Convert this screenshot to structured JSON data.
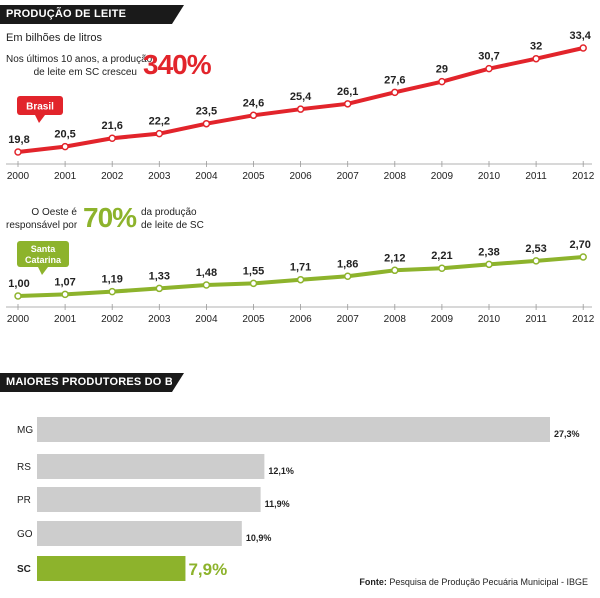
{
  "header1": {
    "title": "PRODUÇÃO DE LEITE"
  },
  "unit_text": "Em bilhões de litros",
  "growth_note": {
    "line1": "Nos últimos 10 anos, a produção",
    "line2": "de leite em SC cresceu",
    "percent": "340%"
  },
  "share_note": {
    "left1": "O Oeste é",
    "left2": "responsável por",
    "percent": "70%",
    "right1": "da produção",
    "right2": "de leite de SC"
  },
  "header2": {
    "title": "MAIORES PRODUTORES DO BRASIL"
  },
  "source": {
    "label": "Fonte:",
    "text": "Pesquisa de Produção Pecuária Municipal - IBGE"
  },
  "colors": {
    "red": "#e2242b",
    "green": "#8db32c",
    "gray": "#cdcdcd",
    "dark": "#1a1a1a"
  },
  "chart_data": [
    {
      "type": "line",
      "series_label": "Brasil",
      "x": [
        "2000",
        "2001",
        "2002",
        "2003",
        "2004",
        "2005",
        "2006",
        "2007",
        "2008",
        "2009",
        "2010",
        "2011",
        "2012"
      ],
      "values": [
        19.8,
        20.5,
        21.6,
        22.2,
        23.5,
        24.6,
        25.4,
        26.1,
        27.6,
        29,
        30.7,
        32,
        33.4
      ],
      "labels": [
        "19,8",
        "20,5",
        "21,6",
        "22,2",
        "23,5",
        "24,6",
        "25,4",
        "26,1",
        "27,6",
        "29",
        "30,7",
        "32",
        "33,4"
      ],
      "color": "#e2242b"
    },
    {
      "type": "line",
      "series_label": "Santa Catarina",
      "x": [
        "2000",
        "2001",
        "2002",
        "2003",
        "2004",
        "2005",
        "2006",
        "2007",
        "2008",
        "2009",
        "2010",
        "2011",
        "2012"
      ],
      "values": [
        1.0,
        1.07,
        1.19,
        1.33,
        1.48,
        1.55,
        1.71,
        1.86,
        2.12,
        2.21,
        2.38,
        2.53,
        2.7
      ],
      "labels": [
        "1,00",
        "1,07",
        "1,19",
        "1,33",
        "1,48",
        "1,55",
        "1,71",
        "1,86",
        "2,12",
        "2,21",
        "2,38",
        "2,53",
        "2,70"
      ],
      "color": "#8db32c"
    },
    {
      "type": "bar",
      "categories": [
        "MG",
        "RS",
        "PR",
        "GO",
        "SC"
      ],
      "values": [
        27.3,
        12.1,
        11.9,
        10.9,
        7.9
      ],
      "labels": [
        "27,3%",
        "12,1%",
        "11,9%",
        "10,9%",
        "7,9%"
      ],
      "highlight": "SC"
    }
  ]
}
